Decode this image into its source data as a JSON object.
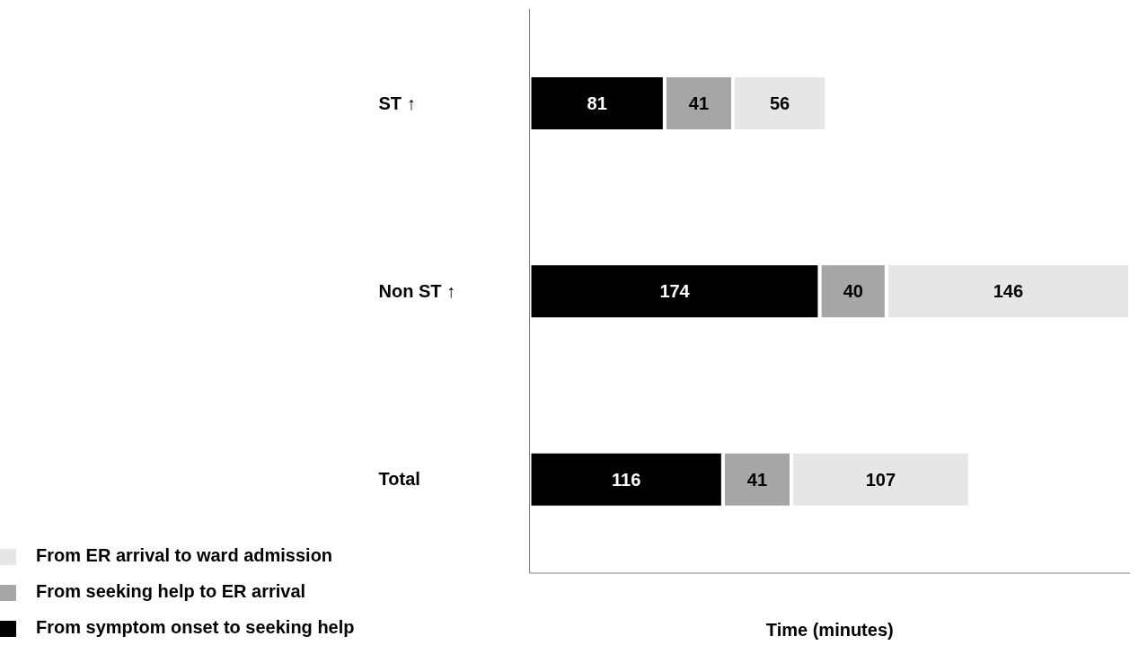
{
  "chart_data": {
    "type": "bar",
    "orientation": "horizontal",
    "stacked": true,
    "xlabel": "Time (minutes)",
    "categories": [
      "ST ↑",
      "Non ST ↑",
      "Total"
    ],
    "series": [
      {
        "name": "From symptom onset to seeking help",
        "color": "#000000",
        "values": [
          81,
          174,
          116
        ]
      },
      {
        "name": "From seeking help to ER arrival",
        "color": "#a6a6a6",
        "values": [
          41,
          40,
          41
        ]
      },
      {
        "name": "From ER arrival to ward admission",
        "color": "#e6e6e6",
        "values": [
          56,
          146,
          107
        ]
      }
    ],
    "data_labels": true,
    "legend": "bottom left",
    "grid": false
  }
}
